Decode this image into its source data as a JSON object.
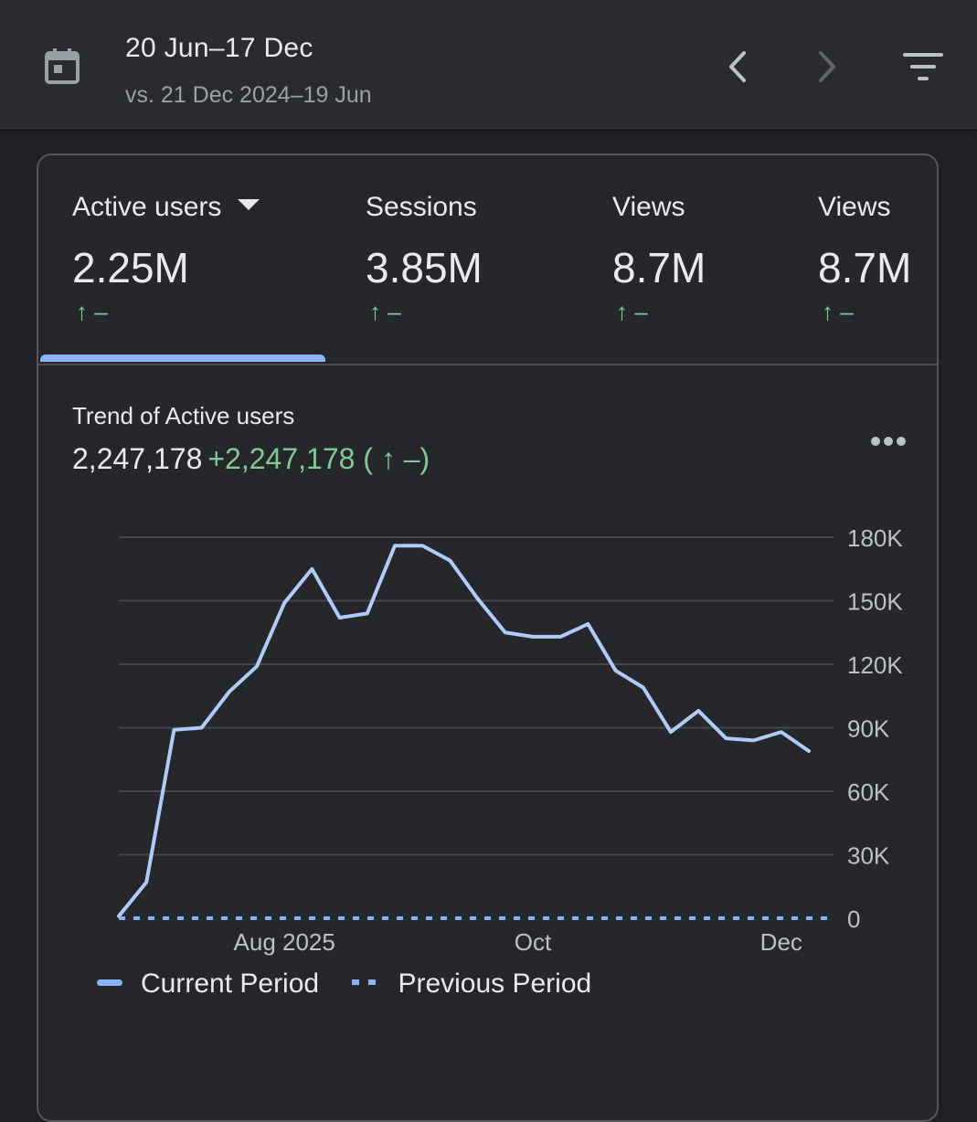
{
  "header": {
    "date_range": "20 Jun–17 Dec",
    "compare_range": "vs. 21 Dec 2024–19 Jun",
    "icons": [
      "calendar-icon",
      "chevron-left-icon",
      "chevron-right-icon",
      "filter-icon"
    ]
  },
  "metrics": [
    {
      "label": "Active users",
      "value": "2.25M",
      "change": "↑ –",
      "selected": true
    },
    {
      "label": "Sessions",
      "value": "3.85M",
      "change": "↑ –"
    },
    {
      "label": "Views",
      "value": "8.7M",
      "change": "↑ –"
    },
    {
      "label": "Views",
      "value": "8.7M",
      "change": "↑ –"
    }
  ],
  "trend": {
    "title": "Trend of Active users",
    "total": "2,247,178",
    "delta": "+2,247,178 ( ↑ –)"
  },
  "colors": {
    "accent": "#8ab4f8",
    "positive": "#81c995",
    "background": "#1f2023",
    "card": "#26272b"
  },
  "chart_data": {
    "type": "line",
    "title": "Trend of Active users",
    "ylim": [
      0,
      180000
    ],
    "y_ticks": [
      0,
      30000,
      60000,
      90000,
      120000,
      150000,
      180000
    ],
    "y_tick_labels": [
      "0",
      "30K",
      "60K",
      "90K",
      "120K",
      "150K",
      "180K"
    ],
    "x_tick_labels": [
      {
        "label": "Aug 2025",
        "index": 6
      },
      {
        "label": "Oct",
        "index": 15
      },
      {
        "label": "Dec",
        "index": 24
      }
    ],
    "grid": true,
    "series": [
      {
        "name": "Current Period",
        "style": "solid",
        "values": [
          1000,
          17000,
          89000,
          90000,
          107000,
          119000,
          149000,
          165000,
          142000,
          144000,
          176000,
          176000,
          169000,
          151000,
          135000,
          133000,
          133000,
          139000,
          117000,
          109000,
          88000,
          98000,
          85000,
          84000,
          88000,
          79000
        ]
      },
      {
        "name": "Previous Period",
        "style": "dotted",
        "values": [
          0,
          0,
          0,
          0,
          0,
          0,
          0,
          0,
          0,
          0,
          0,
          0,
          0,
          0,
          0,
          0,
          0,
          0,
          0,
          0,
          0,
          0,
          0,
          0,
          0,
          0
        ]
      }
    ],
    "legend": [
      "Current Period",
      "Previous Period"
    ]
  }
}
